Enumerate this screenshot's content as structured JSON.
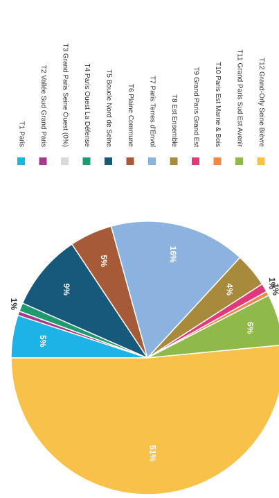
{
  "chart_data": {
    "type": "pie",
    "orientation_note": "rotated",
    "title": "",
    "legend": "right",
    "slices": [
      {
        "name": "T1 Paris",
        "value": 5,
        "label": "5%",
        "color": "#1db3e6"
      },
      {
        "name": "T2 Vallée Sud Grand Paris",
        "value": 0.5,
        "label": "",
        "color": "#a33d8a"
      },
      {
        "name": "T3 Grand Paris Seine Ouest (0%)",
        "value": 0,
        "label": "",
        "color": "#d9d9d9"
      },
      {
        "name": "T4 Paris Ouest La Défense",
        "value": 1,
        "label": "1%",
        "color": "#1e9a6e"
      },
      {
        "name": "T5 Boucle Nord de Seine",
        "value": 9,
        "label": "9%",
        "color": "#17597a"
      },
      {
        "name": "T6 Plaine Commune",
        "value": 5,
        "label": "5%",
        "color": "#a65a38"
      },
      {
        "name": "T7 Paris Terres d'Envol",
        "value": 16,
        "label": "16%",
        "color": "#8cb3e0"
      },
      {
        "name": "T8 Est Ensemble",
        "value": 4,
        "label": "4%",
        "color": "#a88a3c"
      },
      {
        "name": "T9 Grand Paris Grand Est",
        "value": 1,
        "label": "1%",
        "color": "#e03a7c"
      },
      {
        "name": "T10 Paris Est Marne & Bois",
        "value": 0.5,
        "label": "1%",
        "color": "#f0874a"
      },
      {
        "name": "T11 Grand Paris Sud Est Avenir",
        "value": 6,
        "label": "6%",
        "color": "#8fb94a"
      },
      {
        "name": "T12 Grand-Orly Seine Bièvre",
        "value": 51,
        "label": "51%",
        "color": "#f7c14a"
      }
    ]
  }
}
